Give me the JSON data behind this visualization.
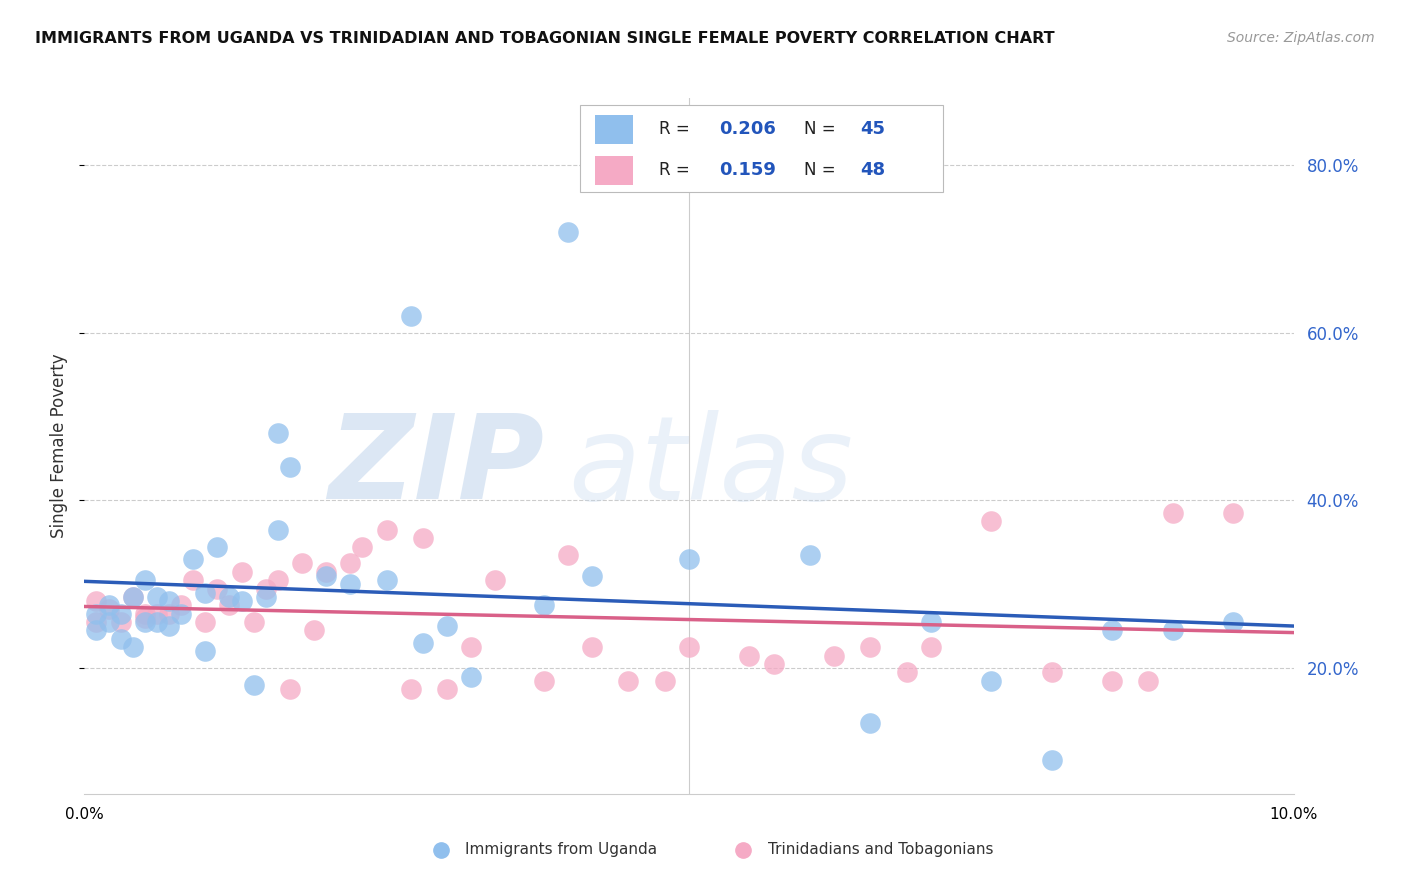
{
  "title": "IMMIGRANTS FROM UGANDA VS TRINIDADIAN AND TOBAGONIAN SINGLE FEMALE POVERTY CORRELATION CHART",
  "source": "Source: ZipAtlas.com",
  "ylabel": "Single Female Poverty",
  "xlim": [
    0.0,
    0.1
  ],
  "ylim": [
    0.05,
    0.88
  ],
  "yticks": [
    0.2,
    0.4,
    0.6,
    0.8
  ],
  "ytick_labels": [
    "20.0%",
    "40.0%",
    "60.0%",
    "80.0%"
  ],
  "xticks": [
    0.0,
    0.02,
    0.04,
    0.06,
    0.08,
    0.1
  ],
  "xtick_labels": [
    "0.0%",
    "",
    "",
    "",
    "",
    "10.0%"
  ],
  "legend_r1": "0.206",
  "legend_n1": "45",
  "legend_r2": "0.159",
  "legend_n2": "48",
  "blue_color": "#90bfed",
  "pink_color": "#f5aac5",
  "line_blue": "#2b5cb8",
  "line_pink": "#d96088",
  "legend_label1": "Immigrants from Uganda",
  "legend_label2": "Trinidadians and Tobagonians",
  "blue_x": [
    0.001,
    0.001,
    0.002,
    0.002,
    0.003,
    0.003,
    0.004,
    0.004,
    0.005,
    0.005,
    0.006,
    0.006,
    0.007,
    0.007,
    0.008,
    0.009,
    0.01,
    0.01,
    0.011,
    0.012,
    0.013,
    0.014,
    0.015,
    0.016,
    0.016,
    0.017,
    0.02,
    0.022,
    0.025,
    0.027,
    0.028,
    0.03,
    0.032,
    0.038,
    0.04,
    0.042,
    0.05,
    0.06,
    0.065,
    0.07,
    0.075,
    0.08,
    0.085,
    0.09,
    0.095
  ],
  "blue_y": [
    0.265,
    0.245,
    0.275,
    0.255,
    0.235,
    0.265,
    0.225,
    0.285,
    0.255,
    0.305,
    0.285,
    0.255,
    0.28,
    0.25,
    0.265,
    0.33,
    0.29,
    0.22,
    0.345,
    0.285,
    0.28,
    0.18,
    0.285,
    0.365,
    0.48,
    0.44,
    0.31,
    0.3,
    0.305,
    0.62,
    0.23,
    0.25,
    0.19,
    0.275,
    0.72,
    0.31,
    0.33,
    0.335,
    0.135,
    0.255,
    0.185,
    0.09,
    0.245,
    0.245,
    0.255
  ],
  "pink_x": [
    0.001,
    0.001,
    0.002,
    0.003,
    0.004,
    0.005,
    0.005,
    0.006,
    0.007,
    0.008,
    0.009,
    0.01,
    0.011,
    0.012,
    0.013,
    0.014,
    0.015,
    0.016,
    0.017,
    0.018,
    0.019,
    0.02,
    0.022,
    0.023,
    0.025,
    0.027,
    0.028,
    0.03,
    0.032,
    0.034,
    0.038,
    0.04,
    0.042,
    0.045,
    0.048,
    0.05,
    0.055,
    0.057,
    0.062,
    0.065,
    0.068,
    0.07,
    0.075,
    0.08,
    0.085,
    0.088,
    0.09,
    0.095
  ],
  "pink_y": [
    0.255,
    0.28,
    0.27,
    0.255,
    0.285,
    0.265,
    0.26,
    0.265,
    0.265,
    0.275,
    0.305,
    0.255,
    0.295,
    0.275,
    0.315,
    0.255,
    0.295,
    0.305,
    0.175,
    0.325,
    0.245,
    0.315,
    0.325,
    0.345,
    0.365,
    0.175,
    0.355,
    0.175,
    0.225,
    0.305,
    0.185,
    0.335,
    0.225,
    0.185,
    0.185,
    0.225,
    0.215,
    0.205,
    0.215,
    0.225,
    0.195,
    0.225,
    0.375,
    0.195,
    0.185,
    0.185,
    0.385,
    0.385
  ]
}
